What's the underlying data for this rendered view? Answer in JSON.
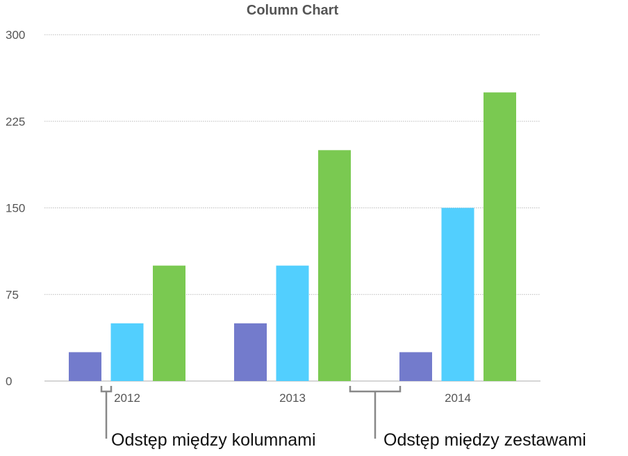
{
  "chart_data": {
    "type": "bar",
    "title": "Column Chart",
    "categories": [
      "2012",
      "2013",
      "2014"
    ],
    "series": [
      {
        "values": [
          25,
          50,
          25
        ],
        "color": "#737bcc"
      },
      {
        "values": [
          50,
          100,
          150
        ],
        "color": "#52cffe"
      },
      {
        "values": [
          100,
          200,
          250
        ],
        "color": "#7ac951"
      }
    ],
    "yticks": [
      0,
      75,
      150,
      225,
      300
    ],
    "ylim": [
      0,
      300
    ],
    "grid": "horizontal dotted",
    "xlabel": "",
    "ylabel": "",
    "annotations": [
      {
        "text": "Odstęp między kolumnami",
        "target": "gap between columns"
      },
      {
        "text": "Odstęp między zestawami",
        "target": "gap between sets"
      }
    ]
  }
}
